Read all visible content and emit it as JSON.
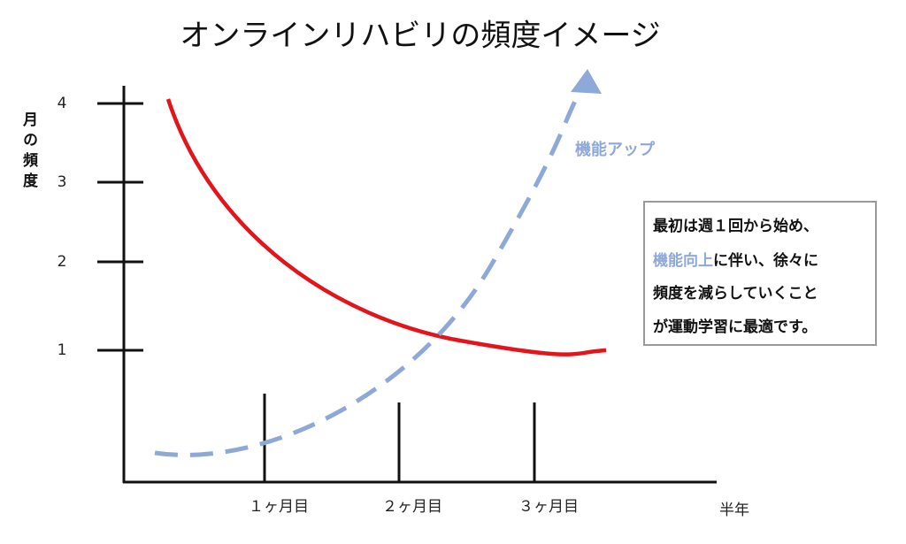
{
  "title": "オンラインリハビリの頻度イメージ",
  "y_axis": {
    "label": "月の頻度",
    "ticks": [
      4,
      3,
      2,
      1
    ]
  },
  "x_axis": {
    "ticks": [
      "１ヶ月目",
      "２ヶ月目",
      "３ヶ月目"
    ],
    "end_label": "半年"
  },
  "arrow_label": "機能アップ",
  "note": {
    "lines": [
      "最初は週１回から始め、",
      "に伴い、徐々に",
      "頻度を減らしていくこと",
      "が運動学習に最適です。"
    ],
    "highlight": "機能向上"
  }
}
